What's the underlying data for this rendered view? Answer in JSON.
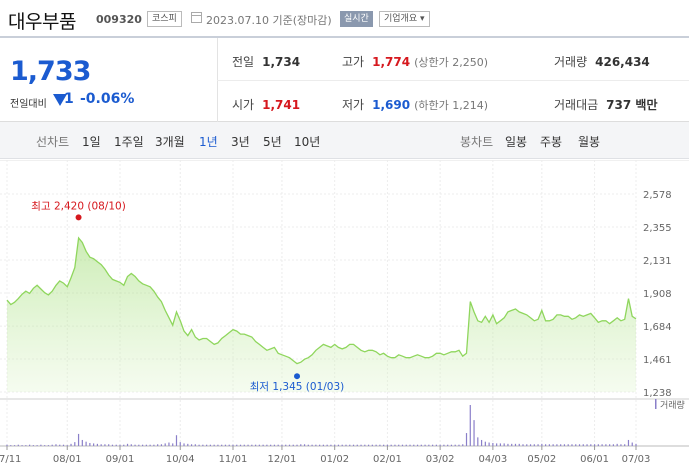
{
  "header": {
    "stock_name": "대우부품",
    "stock_code": "009320",
    "market_badge": "코스피",
    "date_text": "2023.07.10 기준(장마감)",
    "realtime_badge": "실시간",
    "company_info_label": "기업개요 ▾"
  },
  "quote": {
    "price": "1,733",
    "change_label": "전일대비",
    "change_value": "1",
    "change_pct": "-0.06%",
    "prev_close_label": "전일",
    "prev_close": "1,734",
    "high_label": "고가",
    "high": "1,774",
    "upper_limit_text": "(상한가 2,250)",
    "volume_label": "거래량",
    "volume": "426,434",
    "open_label": "시가",
    "open": "1,741",
    "low_label": "저가",
    "low": "1,690",
    "lower_limit_text": "(하한가 1,214)",
    "amount_label": "거래대금",
    "amount": "737 백만"
  },
  "colors": {
    "up": "#d6181e",
    "down": "#1b5bd0",
    "line": "#8fd65d",
    "fill": "#e3f6d3"
  },
  "tabs": {
    "line_chart_label": "선차트",
    "periods": [
      "1일",
      "1주일",
      "3개월",
      "1년",
      "3년",
      "5년",
      "10년"
    ],
    "selected": "1년",
    "candle_label": "봉차트",
    "candle_periods": [
      "일봉",
      "주봉",
      "월봉"
    ]
  },
  "chart_data": {
    "type": "area",
    "ylim": [
      1238,
      2578
    ],
    "y_ticks": [
      2578,
      2355,
      2131,
      1908,
      1684,
      1461,
      1238
    ],
    "y_tick_labels": [
      "2,578",
      "2,355",
      "2,131",
      "1,908",
      "1,684",
      "1,461",
      "1,238"
    ],
    "x_tick_labels": [
      "07/11",
      "08/01",
      "09/01",
      "10/04",
      "11/01",
      "12/01",
      "01/02",
      "02/01",
      "03/02",
      "04/03",
      "05/02",
      "06/01",
      "07/03"
    ],
    "high_annotation": "최고 2,420 (08/10)",
    "low_annotation": "최저 1,345 (01/03)",
    "volume_label": "거래량",
    "series": [
      {
        "values": [
          1860,
          1830,
          1845,
          1870,
          1900,
          1920,
          1905,
          1940,
          1960,
          1935,
          1910,
          1895,
          1920,
          1960,
          1990,
          1975,
          1950,
          2010,
          2080,
          2280,
          2250,
          2190,
          2150,
          2140,
          2120,
          2100,
          2070,
          2030,
          2000,
          1990,
          1980,
          1960,
          2020,
          2040,
          2020,
          1990,
          1970,
          1960,
          1950,
          1920,
          1880,
          1850,
          1790,
          1740,
          1690,
          1780,
          1720,
          1650,
          1620,
          1660,
          1610,
          1590,
          1600,
          1600,
          1580,
          1560,
          1570,
          1600,
          1620,
          1640,
          1660,
          1650,
          1630,
          1630,
          1620,
          1610,
          1580,
          1560,
          1540,
          1520,
          1530,
          1540,
          1500,
          1490,
          1480,
          1470,
          1450,
          1430,
          1440,
          1460,
          1470,
          1490,
          1520,
          1540,
          1560,
          1550,
          1540,
          1560,
          1540,
          1530,
          1540,
          1560,
          1560,
          1540,
          1520,
          1510,
          1520,
          1520,
          1510,
          1490,
          1500,
          1480,
          1470,
          1470,
          1490,
          1480,
          1470,
          1470,
          1480,
          1490,
          1480,
          1470,
          1470,
          1480,
          1500,
          1500,
          1490,
          1500,
          1510,
          1510,
          1520,
          1480,
          1500,
          1850,
          1780,
          1720,
          1710,
          1750,
          1710,
          1760,
          1700,
          1720,
          1740,
          1780,
          1790,
          1800,
          1780,
          1770,
          1760,
          1740,
          1720,
          1730,
          1790,
          1720,
          1720,
          1730,
          1760,
          1760,
          1750,
          1750,
          1730,
          1740,
          1760,
          1750,
          1760,
          1770,
          1740,
          1710,
          1720,
          1720,
          1700,
          1720,
          1740,
          1720,
          1730,
          1870,
          1750,
          1733
        ]
      }
    ],
    "volume": [
      3,
      2,
      2,
      3,
      2,
      2,
      3,
      2,
      2,
      3,
      2,
      2,
      3,
      4,
      3,
      3,
      2,
      5,
      9,
      28,
      14,
      10,
      7,
      6,
      5,
      4,
      4,
      4,
      3,
      3,
      3,
      3,
      5,
      4,
      3,
      3,
      3,
      3,
      3,
      3,
      4,
      4,
      6,
      8,
      6,
      25,
      9,
      6,
      5,
      4,
      4,
      3,
      3,
      3,
      3,
      3,
      3,
      3,
      3,
      3,
      3,
      3,
      3,
      3,
      3,
      3,
      3,
      3,
      3,
      3,
      3,
      3,
      3,
      3,
      3,
      3,
      3,
      3,
      4,
      4,
      3,
      3,
      3,
      3,
      3,
      3,
      3,
      3,
      3,
      3,
      3,
      3,
      3,
      3,
      3,
      3,
      3,
      3,
      3,
      3,
      3,
      3,
      3,
      3,
      3,
      3,
      3,
      3,
      3,
      3,
      3,
      3,
      3,
      3,
      3,
      3,
      3,
      3,
      3,
      3,
      3,
      4,
      30,
      95,
      60,
      20,
      14,
      10,
      8,
      7,
      6,
      6,
      6,
      5,
      5,
      5,
      5,
      4,
      4,
      4,
      4,
      4,
      5,
      4,
      4,
      4,
      4,
      4,
      4,
      4,
      4,
      4,
      4,
      4,
      4,
      4,
      4,
      4,
      4,
      4,
      4,
      4,
      5,
      4,
      4,
      14,
      8,
      5
    ]
  }
}
